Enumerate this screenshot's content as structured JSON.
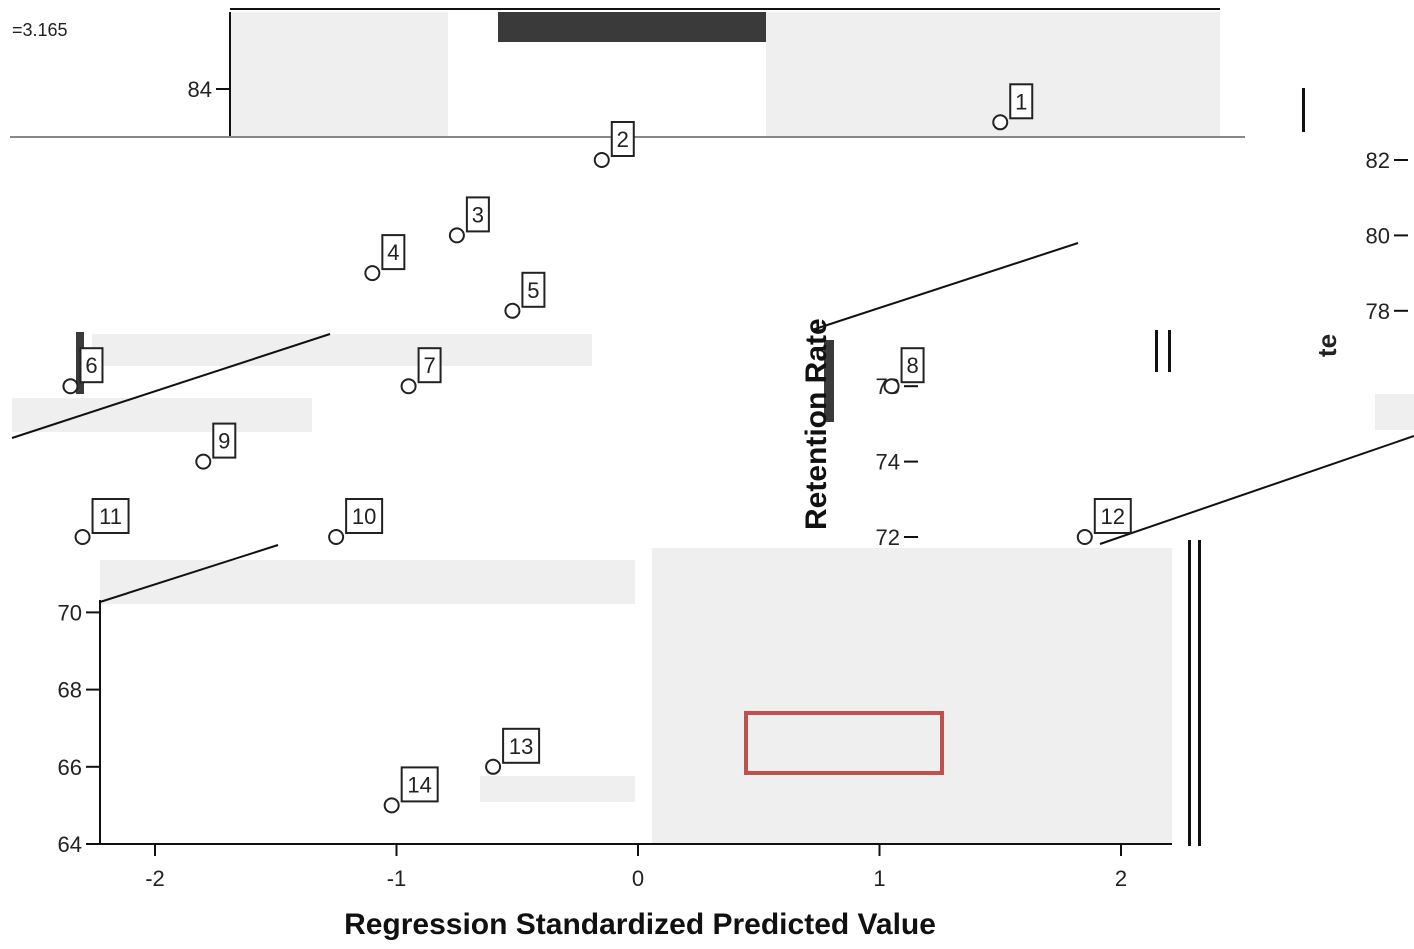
{
  "chart_data": {
    "type": "scatter",
    "title": "",
    "xlabel": "Regression Standardized Predicted Value",
    "ylabel": "Retention Rate",
    "panels": [
      {
        "region": "main",
        "xlim": [
          -2.2,
          2.2
        ],
        "ylim": [
          64,
          71
        ],
        "x_ticks": [
          "-2",
          "-1",
          "0",
          "1",
          "2"
        ],
        "y_ticks": [
          "70",
          "68",
          "66",
          "64"
        ],
        "points": [
          {
            "label": "13",
            "x": -0.6,
            "y": 66.0
          },
          {
            "label": "14",
            "x": -1.02,
            "y": 65.0
          }
        ]
      },
      {
        "region": "upper",
        "y_ticks_left": [
          "84"
        ],
        "y_ticks_right": [
          "82",
          "80",
          "78",
          "76",
          "74",
          "72"
        ],
        "points": [
          {
            "label": "1",
            "x": 1.5,
            "y": 83.0
          },
          {
            "label": "2",
            "x": -0.15,
            "y": 82.0
          },
          {
            "label": "3",
            "x": -0.75,
            "y": 80.0
          },
          {
            "label": "4",
            "x": -1.1,
            "y": 79.0
          },
          {
            "label": "5",
            "x": -0.52,
            "y": 78.0
          },
          {
            "label": "6",
            "x": -2.35,
            "y": 76.0
          },
          {
            "label": "7",
            "x": -0.95,
            "y": 76.0
          },
          {
            "label": "8",
            "x": 1.05,
            "y": 76.0
          },
          {
            "label": "9",
            "x": -1.8,
            "y": 74.0
          },
          {
            "label": "10",
            "x": -1.25,
            "y": 72.0
          },
          {
            "label": "11",
            "x": -2.3,
            "y": 72.0
          },
          {
            "label": "12",
            "x": 1.85,
            "y": 72.0
          }
        ]
      }
    ],
    "grid": false,
    "fit_line": true,
    "colors": {
      "points": "#222222",
      "fit_line": "#111111",
      "highlight": "#c0504d",
      "band": "#efefef"
    }
  },
  "fragments": {
    "corner_text": "=3.165",
    "axis_fragment_te": "te"
  }
}
